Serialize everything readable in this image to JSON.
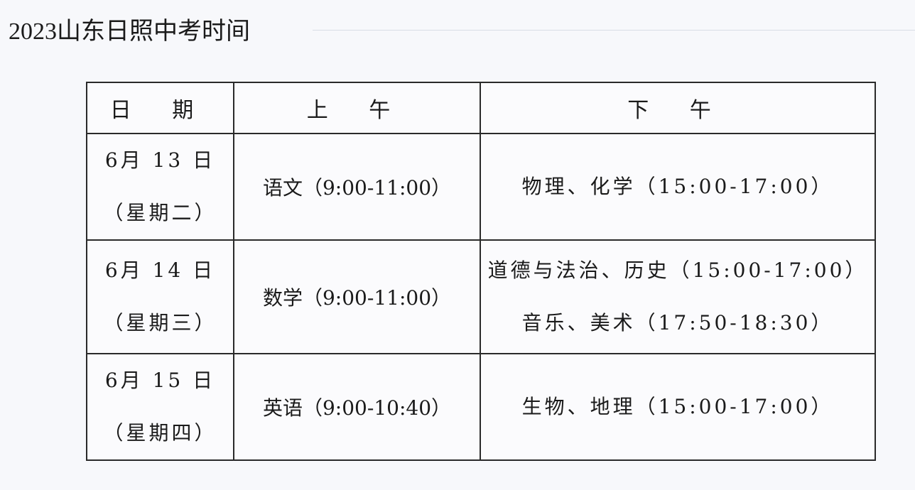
{
  "title": "2023山东日照中考时间",
  "table": {
    "headers": [
      "日 期",
      "上 午",
      "下 午"
    ],
    "rows": [
      {
        "date": "6月 13 日",
        "weekday": "（星期二）",
        "morning": "语文（9:00-11:00）",
        "afternoon": [
          "物理、化学（15:00-17:00）"
        ]
      },
      {
        "date": "6月 14 日",
        "weekday": "（星期三）",
        "morning": "数学（9:00-11:00）",
        "afternoon": [
          "道德与法治、历史（15:00-17:00）",
          "音乐、美术（17:50-18:30）"
        ]
      },
      {
        "date": "6月 15 日",
        "weekday": "（星期四）",
        "morning": "英语（9:00-10:40）",
        "afternoon": [
          "生物、地理（15:00-17:00）"
        ]
      }
    ]
  }
}
